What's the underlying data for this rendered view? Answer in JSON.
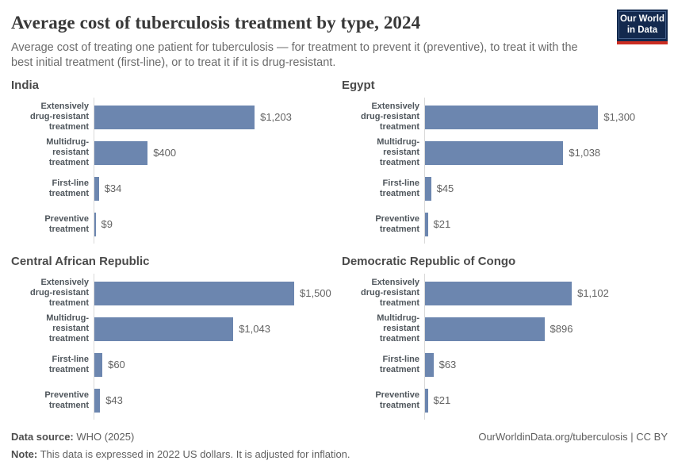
{
  "header": {
    "title": "Average cost of tuberculosis treatment by type, 2024",
    "subtitle": "Average cost of treating one patient for tuberculosis — for treatment to prevent it (preventive), to treat it with the best initial treatment (first-line), or to treat it if it is drug-resistant.",
    "logo": {
      "line1": "Our World",
      "line2": "in Data",
      "bg_color": "#13294e",
      "accent_color": "#cb2d22"
    }
  },
  "chart_data": {
    "type": "bar",
    "orientation": "horizontal",
    "unit": "US dollars (2022)",
    "bar_color": "#6c86af",
    "xmax": 1500,
    "grid": false,
    "categories": [
      "Extensively drug-resistant treatment",
      "Multidrug-resistant treatment",
      "First-line treatment",
      "Preventive treatment"
    ],
    "category_lines": [
      [
        "Extensively",
        "drug-resistant",
        "treatment"
      ],
      [
        "Multidrug-resistant",
        "treatment"
      ],
      [
        "First-line treatment"
      ],
      [
        "Preventive",
        "treatment"
      ]
    ],
    "charts": [
      {
        "title": "India",
        "values": [
          1203,
          400,
          34,
          9
        ],
        "value_labels": [
          "$1,203",
          "$400",
          "$34",
          "$9"
        ]
      },
      {
        "title": "Egypt",
        "values": [
          1300,
          1038,
          45,
          21
        ],
        "value_labels": [
          "$1,300",
          "$1,038",
          "$45",
          "$21"
        ]
      },
      {
        "title": "Central African Republic",
        "values": [
          1500,
          1043,
          60,
          43
        ],
        "value_labels": [
          "$1,500",
          "$1,043",
          "$60",
          "$43"
        ]
      },
      {
        "title": "Democratic Republic of Congo",
        "values": [
          1102,
          896,
          63,
          21
        ],
        "value_labels": [
          "$1,102",
          "$896",
          "$63",
          "$21"
        ]
      }
    ]
  },
  "footer": {
    "source_label": "Data source:",
    "source_text": " WHO (2025)",
    "note_label": "Note:",
    "note_text": " This data is expressed in 2022 US dollars. It is adjusted for inflation.",
    "link": "OurWorldinData.org/tuberculosis | CC BY"
  }
}
